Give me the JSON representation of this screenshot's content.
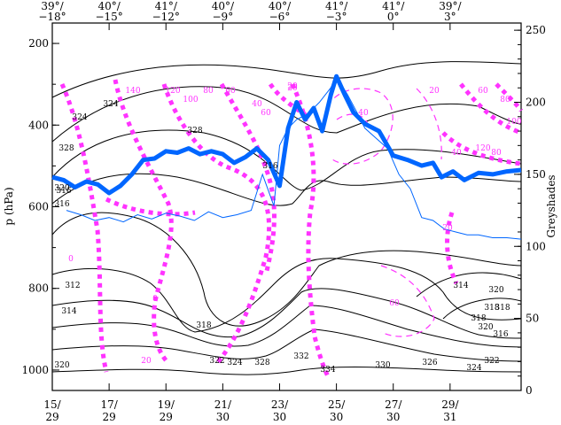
{
  "chart_data": {
    "type": "line",
    "title": "",
    "xlabel": "",
    "ylabel": "p (hPa)",
    "y2label": "Greyshades",
    "grid": false,
    "legend": "none",
    "ylim": [
      1050,
      150
    ],
    "y_reversed": true,
    "y2lim": [
      0,
      255
    ],
    "yticks": [
      200,
      400,
      600,
      800,
      1000
    ],
    "y2ticks": [
      0,
      50,
      100,
      150,
      200,
      250
    ],
    "x_bottom_ticks": [
      {
        "x": 15,
        "line1": "15/",
        "line2": "29"
      },
      {
        "x": 17,
        "line1": "17/",
        "line2": "29"
      },
      {
        "x": 19,
        "line1": "19/",
        "line2": "29"
      },
      {
        "x": 21,
        "line1": "21/",
        "line2": "30"
      },
      {
        "x": 23,
        "line1": "23/",
        "line2": "30"
      },
      {
        "x": 25,
        "line1": "25/",
        "line2": "30"
      },
      {
        "x": 27,
        "line1": "27/",
        "line2": "30"
      },
      {
        "x": 29,
        "line1": "29/",
        "line2": "31"
      }
    ],
    "x_top_ticks": [
      {
        "x": 15,
        "line1": "39°/",
        "line2": "−18°"
      },
      {
        "x": 17,
        "line1": "40°/",
        "line2": "−15°"
      },
      {
        "x": 19,
        "line1": "41°/",
        "line2": "−12°"
      },
      {
        "x": 21,
        "line1": "40°/",
        "line2": "−9°"
      },
      {
        "x": 23,
        "line1": "40°/",
        "line2": "−6°"
      },
      {
        "x": 25,
        "line1": "41°/",
        "line2": "−3°"
      },
      {
        "x": 27,
        "line1": "41°/",
        "line2": "0°"
      },
      {
        "x": 29,
        "line1": "39°/",
        "line2": "3°"
      }
    ],
    "xlim": [
      15,
      31.5
    ],
    "series": [
      {
        "role": "thick-blue-greyshade",
        "color": "#0066ff",
        "x": [
          15,
          15.4,
          15.8,
          16.2,
          16.6,
          17.0,
          17.4,
          17.8,
          18.2,
          18.6,
          19.0,
          19.4,
          19.8,
          20.2,
          20.6,
          21.0,
          21.4,
          21.8,
          22.2,
          22.6,
          23.0,
          23.3,
          23.6,
          23.9,
          24.2,
          24.5,
          24.8,
          25.0,
          25.3,
          25.6,
          26.0,
          26.5,
          27.0,
          27.5,
          28.0,
          28.4,
          28.7,
          29.1,
          29.5,
          30.0,
          30.5,
          31.0,
          31.5
        ],
        "values": [
          148,
          146,
          141,
          145,
          143,
          137,
          142,
          150,
          160,
          161,
          166,
          165,
          168,
          164,
          166,
          164,
          158,
          162,
          168,
          160,
          142,
          182,
          200,
          188,
          196,
          180,
          205,
          218,
          205,
          193,
          185,
          180,
          163,
          160,
          156,
          158,
          148,
          152,
          146,
          151,
          150,
          152,
          153
        ]
      },
      {
        "role": "thin-blue-greyshade",
        "color": "#0066ff",
        "x": [
          15.5,
          16.0,
          16.5,
          17.0,
          17.5,
          18.0,
          18.5,
          19.0,
          19.5,
          20.0,
          20.5,
          21.0,
          21.5,
          22.0,
          22.4,
          22.8,
          23.0,
          23.3,
          23.6,
          24.0,
          24.4,
          24.8,
          25.0,
          25.4,
          25.8,
          26.0,
          26.4,
          26.8,
          27.2,
          27.6,
          28.0,
          28.4,
          28.8,
          29.2,
          29.6,
          30.0,
          30.5,
          31.0,
          31.5
        ],
        "values": [
          125,
          122,
          118,
          120,
          117,
          122,
          119,
          123,
          121,
          118,
          124,
          120,
          122,
          125,
          150,
          128,
          170,
          182,
          188,
          192,
          200,
          210,
          218,
          205,
          190,
          182,
          175,
          168,
          150,
          140,
          120,
          118,
          112,
          110,
          108,
          108,
          106,
          106,
          105
        ]
      }
    ],
    "contour_labels_black": [
      "324",
      "324",
      "328",
      "328",
      "320",
      "316",
      "316",
      "316",
      "312",
      "314",
      "318",
      "318",
      "320",
      "322",
      "324",
      "328",
      "332",
      "334",
      "330",
      "326",
      "324",
      "322",
      "320",
      "318",
      "316",
      "314",
      "318",
      "320"
    ],
    "contour_labels_magenta": [
      "140",
      "120",
      "100",
      "80",
      "60",
      "40",
      "20",
      "60",
      "20",
      "40",
      "20",
      "20",
      "60",
      "80",
      "100",
      "120",
      "40",
      "0",
      "20",
      "0",
      "80",
      "60"
    ]
  }
}
